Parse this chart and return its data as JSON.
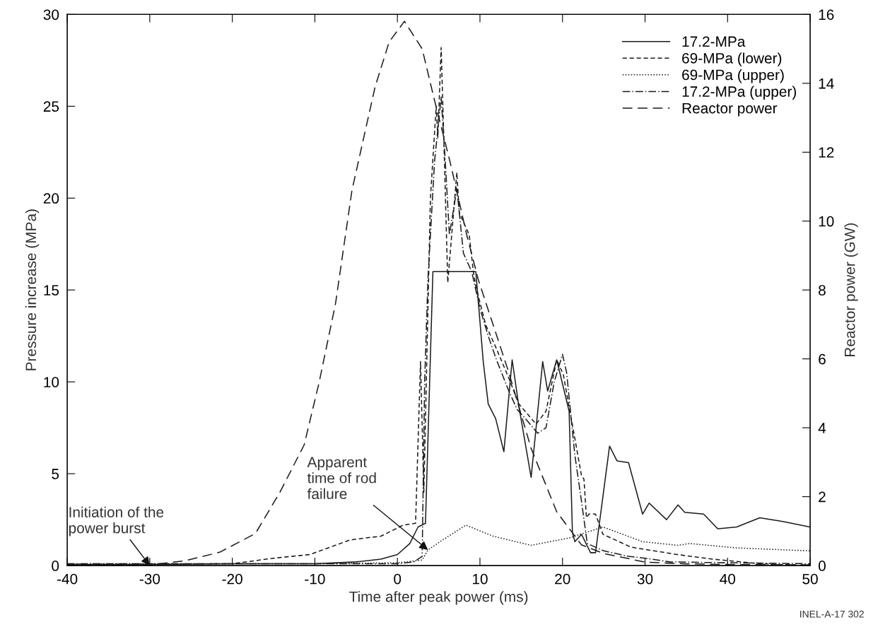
{
  "chart_data": {
    "type": "line",
    "xlabel": "Time after peak power (ms)",
    "ylabel": "Pressure increase (MPa)",
    "y2label": "Reactor power (GW)",
    "xlim": [
      -40,
      50
    ],
    "xticks": [
      -40,
      -30,
      -20,
      -10,
      0,
      10,
      20,
      30,
      40,
      50
    ],
    "ylim": [
      0,
      30
    ],
    "yticks": [
      0,
      5,
      10,
      15,
      20,
      25,
      30
    ],
    "y2lim": [
      0,
      16
    ],
    "y2ticks": [
      0,
      2,
      4,
      6,
      8,
      10,
      12,
      14,
      16
    ],
    "grid": false,
    "legend": "top right",
    "marker": "none",
    "series": [
      {
        "name": "17.2-MPa",
        "color": "#1a1a1a",
        "line_style": "solid",
        "x": [
          -40,
          -30,
          -20,
          -10,
          -5,
          -2,
          0,
          1.5,
          2.5,
          3.4,
          4.3,
          6,
          9.5,
          10.4,
          11,
          11.9,
          12.9,
          13.9,
          14.7,
          16.2,
          17.6,
          18.2,
          19.3,
          20.8,
          21.2,
          21.5,
          22.3,
          23.4,
          24,
          25.7,
          26.6,
          28,
          29.7,
          30.5,
          32.6,
          34,
          34.8,
          37.1,
          38.8,
          41.1,
          43.9,
          46.7,
          50
        ],
        "values": [
          0.05,
          0.05,
          0.1,
          0.1,
          0.2,
          0.35,
          0.6,
          1.2,
          2.1,
          2.3,
          16,
          16,
          16,
          11.1,
          8.8,
          8.0,
          6.2,
          11.2,
          8.7,
          4.8,
          11.1,
          9.5,
          11.2,
          8.4,
          1.8,
          1.3,
          1.7,
          0.7,
          0.7,
          6.5,
          5.7,
          5.6,
          2.8,
          3.4,
          2.5,
          3.3,
          2.9,
          2.8,
          2.0,
          2.1,
          2.6,
          2.4,
          2.1
        ]
      },
      {
        "name": "69-MPa (lower)",
        "color": "#1a1a1a",
        "line_style": "dashed",
        "x": [
          -40,
          -20,
          -15,
          -10.6,
          -5.7,
          -2,
          0.7,
          2.2,
          2.8,
          3.2,
          4,
          4.7,
          4.9,
          5.3,
          5.7,
          6.1,
          7.2,
          7.5,
          8.7,
          9.2,
          9.5,
          10.7,
          12,
          13.5,
          14.7,
          16.8,
          18,
          19.3,
          20.1,
          22.3,
          22.6,
          22.9,
          23.2,
          24,
          24.9,
          28.3,
          33.9,
          38.2,
          43.9,
          50
        ],
        "values": [
          0.05,
          0.1,
          0.4,
          0.6,
          1.4,
          1.6,
          2.2,
          2.3,
          11.1,
          4,
          20,
          25,
          23.3,
          28.2,
          22,
          15.4,
          21.4,
          19.2,
          18,
          16,
          15.2,
          13.1,
          11.8,
          10.2,
          8.8,
          7.7,
          8.4,
          11.2,
          10.4,
          4.9,
          4.7,
          2.6,
          2.8,
          2.8,
          1.7,
          1.0,
          0.6,
          0.35,
          0.1,
          0
        ]
      },
      {
        "name": "69-MPa (upper)",
        "color": "#1a1a1a",
        "line_style": "dotted",
        "x": [
          -40,
          -10,
          0,
          3,
          3.7,
          5.5,
          8.3,
          11.6,
          16.2,
          20.8,
          24.9,
          29.7,
          34,
          35.4,
          41.1,
          50
        ],
        "values": [
          0.1,
          0.1,
          0.15,
          0.3,
          0.85,
          1.4,
          2.2,
          1.6,
          1.1,
          1.5,
          2.1,
          1.3,
          1.1,
          1.2,
          0.96,
          0.8
        ]
      },
      {
        "name": "17.2-MPa (upper)",
        "color": "#1a1a1a",
        "line_style": "dashdot",
        "x": [
          -40,
          -10,
          0,
          2,
          3,
          3.3,
          3.7,
          4.5,
          5.3,
          5.8,
          6.3,
          7.2,
          8,
          9,
          10,
          11,
          12,
          13.5,
          14.5,
          15.5,
          17,
          18,
          19,
          20,
          20.5,
          21.5,
          22.3,
          23,
          24,
          25,
          28,
          30,
          33,
          40,
          50
        ],
        "values": [
          0.1,
          0.1,
          0.1,
          0.2,
          0.5,
          10,
          15.6,
          22,
          25.5,
          22,
          18,
          20.5,
          17,
          16,
          14,
          12.5,
          11.2,
          9.5,
          8.5,
          8,
          7.2,
          7.5,
          10,
          11.5,
          10.5,
          6,
          3.5,
          1.2,
          1.0,
          0.8,
          0.5,
          0.4,
          0.2,
          0.15,
          0.1
        ]
      },
      {
        "name": "Reactor power",
        "color": "#1a1a1a",
        "line_style": "longdash",
        "axis": "y2",
        "x": [
          -40,
          -30,
          -25.7,
          -21.5,
          -17.2,
          -14.3,
          -11.3,
          -9.5,
          -7.5,
          -5.5,
          -4.1,
          -2.7,
          -1,
          0.85,
          3.0,
          4.4,
          6.4,
          8.4,
          9.8,
          13.5,
          16.2,
          19.3,
          22.3,
          25,
          30,
          35,
          40,
          50
        ],
        "values": [
          0,
          0.02,
          0.14,
          0.39,
          0.93,
          2.1,
          3.5,
          5.3,
          7.6,
          10.9,
          12.4,
          13.9,
          15.2,
          15.8,
          15.0,
          13.6,
          11.7,
          9.6,
          8.3,
          5.6,
          3.4,
          1.56,
          0.6,
          0.35,
          0.1,
          0.05,
          0.03,
          0.02
        ]
      }
    ],
    "annotations": [
      {
        "text": "Initiation of the\npower burst",
        "x": -30,
        "y": 0
      },
      {
        "text": "Apparent\ntime of rod\nfailure",
        "x": 3.7,
        "y": 0.85
      },
      "INEL-A-17 302"
    ]
  }
}
